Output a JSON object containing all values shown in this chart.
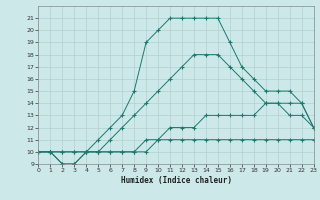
{
  "title": "",
  "xlabel": "Humidex (Indice chaleur)",
  "xlim": [
    0,
    23
  ],
  "ylim": [
    9,
    22
  ],
  "yticks": [
    9,
    10,
    11,
    12,
    13,
    14,
    15,
    16,
    17,
    18,
    19,
    20,
    21
  ],
  "xticks": [
    0,
    1,
    2,
    3,
    4,
    5,
    6,
    7,
    8,
    9,
    10,
    11,
    12,
    13,
    14,
    15,
    16,
    17,
    18,
    19,
    20,
    21,
    22,
    23
  ],
  "background_color": "#cde8e8",
  "line_color": "#1a7a6e",
  "grid_color": "#afd0d0",
  "lines": [
    {
      "x": [
        0,
        1,
        2,
        3,
        4,
        5,
        6,
        7,
        8,
        9,
        10,
        11,
        12,
        13,
        14,
        15,
        16,
        17,
        18,
        19,
        20,
        21,
        22,
        23
      ],
      "y": [
        10,
        10,
        10,
        10,
        10,
        10,
        10,
        10,
        10,
        10,
        11,
        11,
        11,
        11,
        11,
        11,
        11,
        11,
        11,
        11,
        11,
        11,
        11,
        11
      ]
    },
    {
      "x": [
        0,
        1,
        2,
        3,
        4,
        5,
        6,
        7,
        8,
        9,
        10,
        11,
        12,
        13,
        14,
        15,
        16,
        17,
        18,
        19,
        20,
        21,
        22,
        23
      ],
      "y": [
        10,
        10,
        10,
        10,
        10,
        10,
        10,
        10,
        10,
        11,
        11,
        12,
        12,
        12,
        13,
        13,
        13,
        13,
        13,
        14,
        14,
        14,
        14,
        12
      ]
    },
    {
      "x": [
        0,
        1,
        2,
        3,
        4,
        5,
        6,
        7,
        8,
        9,
        10,
        11,
        12,
        13,
        14,
        15,
        16,
        17,
        18,
        19,
        20,
        21,
        22,
        23
      ],
      "y": [
        10,
        10,
        9,
        9,
        10,
        10,
        11,
        12,
        13,
        14,
        15,
        16,
        17,
        18,
        18,
        18,
        17,
        16,
        15,
        14,
        14,
        13,
        13,
        12
      ]
    },
    {
      "x": [
        0,
        1,
        2,
        3,
        4,
        5,
        6,
        7,
        8,
        9,
        10,
        11,
        12,
        13,
        14,
        15,
        16,
        17,
        18,
        19,
        20,
        21,
        22,
        23
      ],
      "y": [
        10,
        10,
        9,
        9,
        10,
        11,
        12,
        13,
        15,
        19,
        20,
        21,
        21,
        21,
        21,
        21,
        19,
        17,
        16,
        15,
        15,
        15,
        14,
        12
      ]
    }
  ]
}
